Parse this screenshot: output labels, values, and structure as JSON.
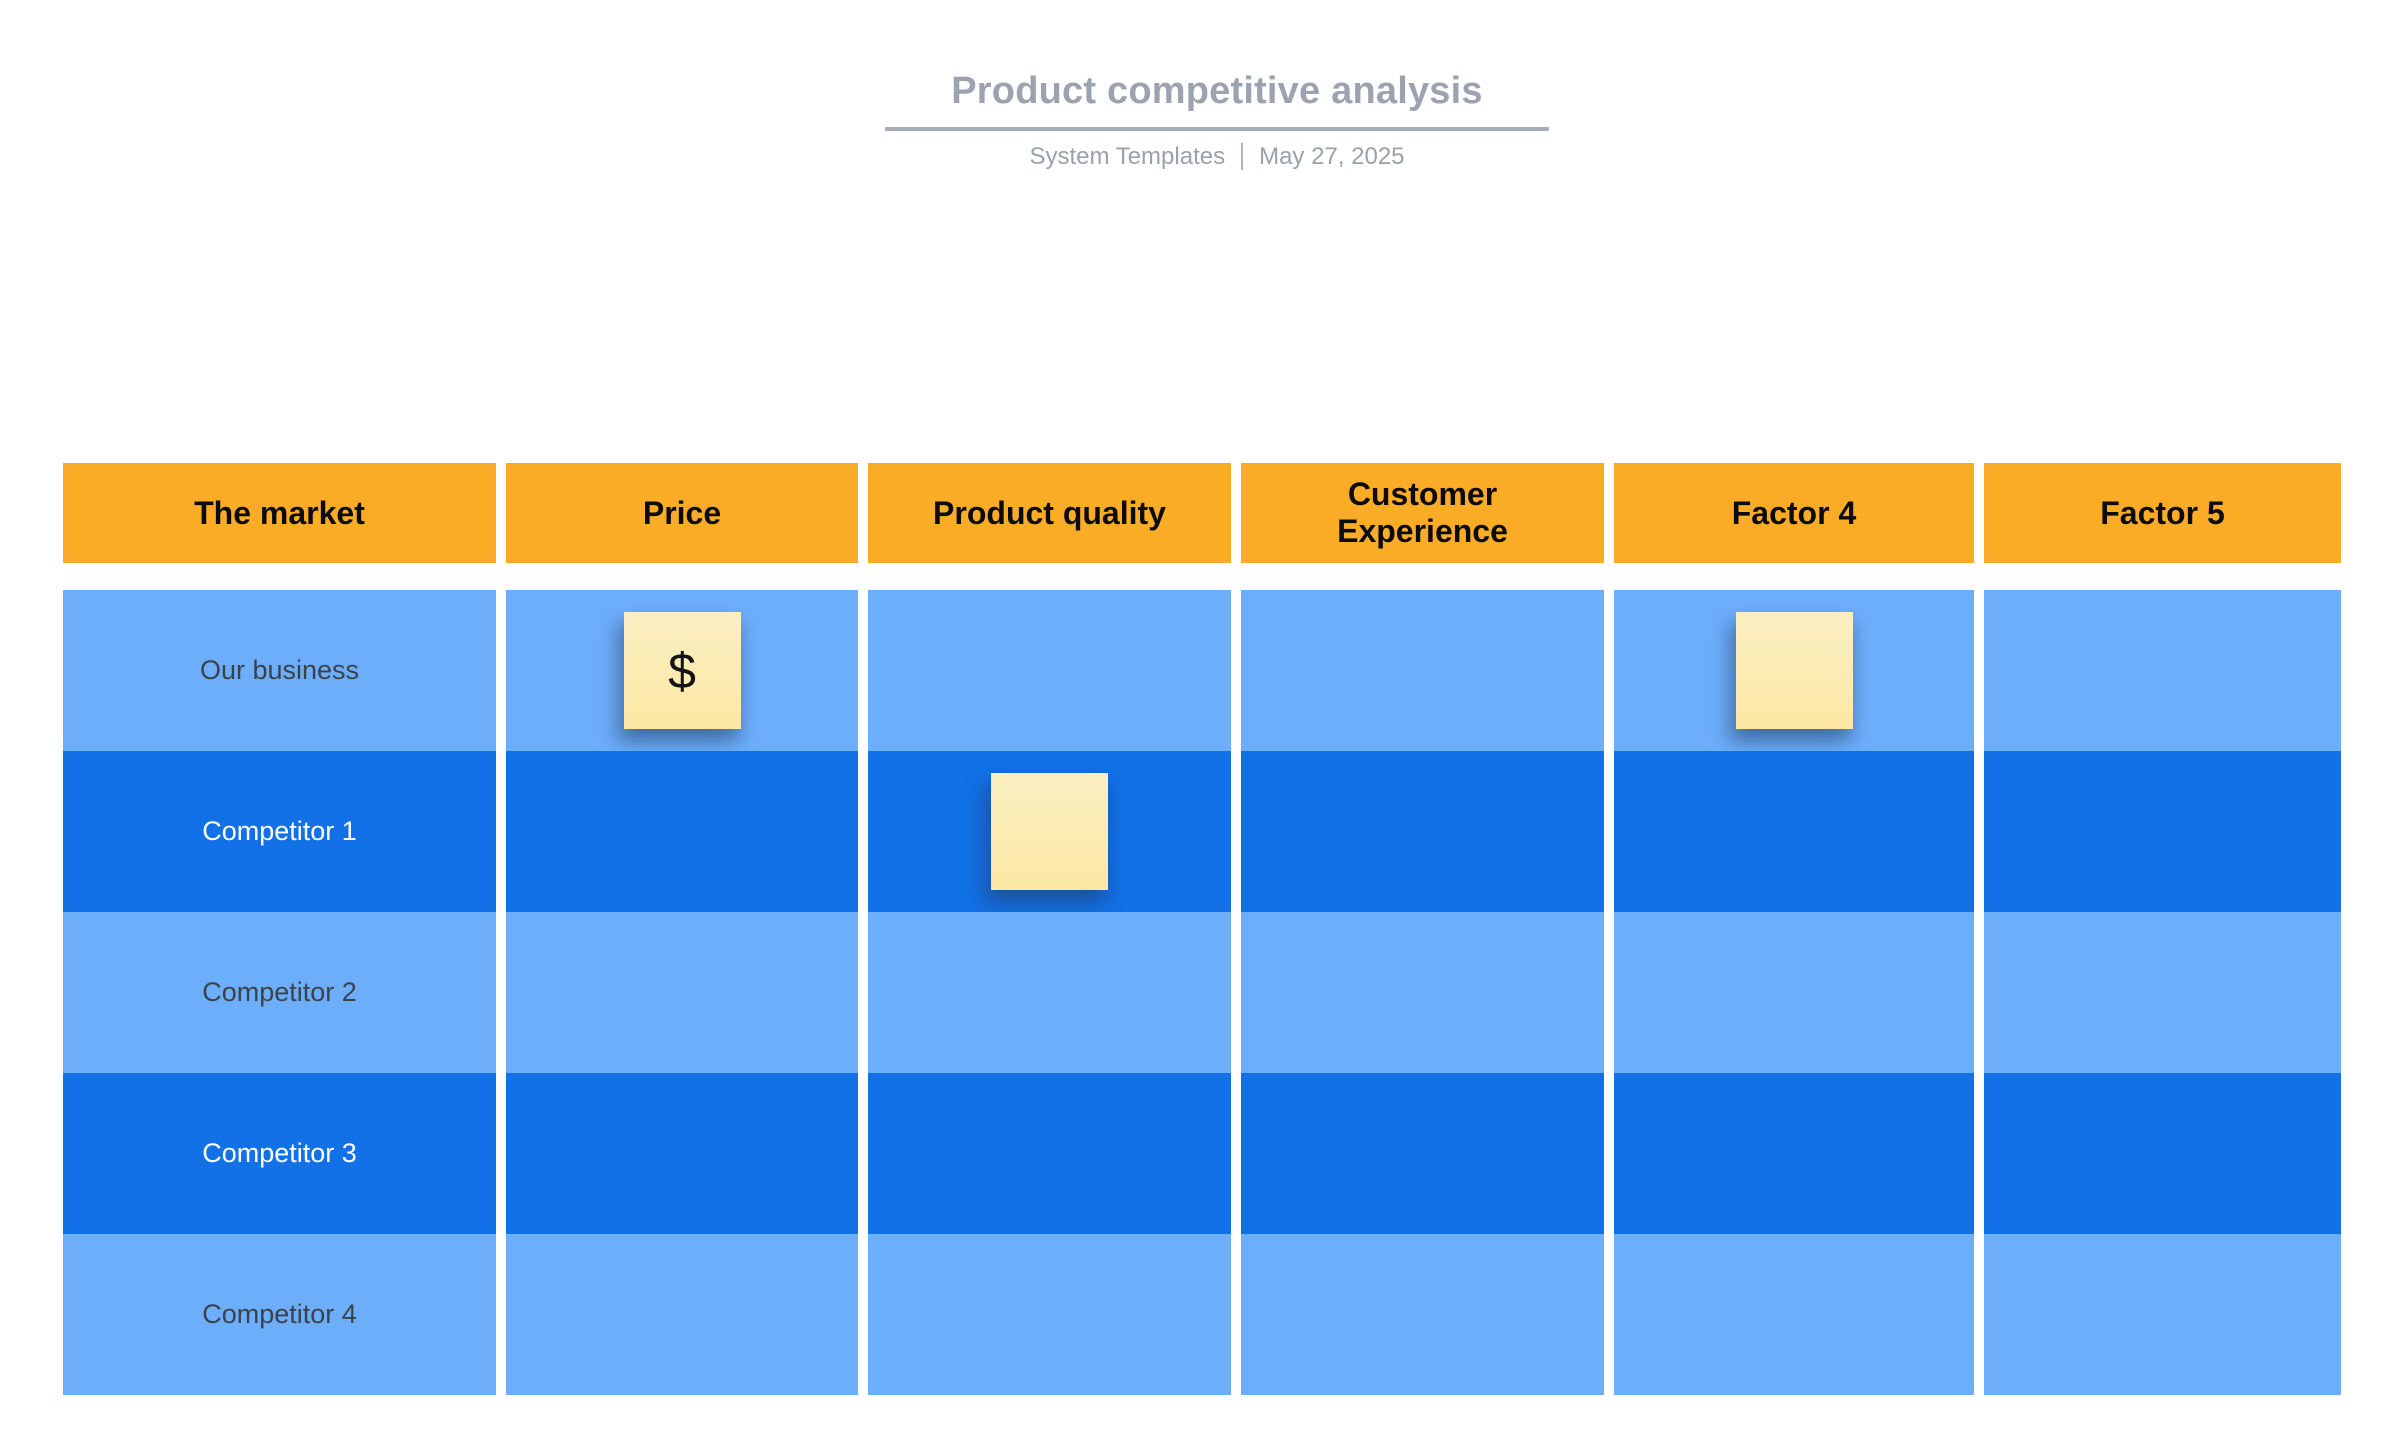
{
  "header": {
    "title": "Product competitive analysis",
    "byline": "System Templates",
    "date": "May 27, 2025"
  },
  "table": {
    "columns": [
      "The market",
      "Price",
      "Product quality",
      "Customer Experience",
      "Factor 4",
      "Factor 5"
    ],
    "rows": [
      {
        "label": "Our business",
        "shade": "light",
        "notes": [
          {
            "col": 1,
            "text": "$"
          },
          {
            "col": 4,
            "text": ""
          }
        ]
      },
      {
        "label": "Competitor 1",
        "shade": "dark",
        "notes": [
          {
            "col": 2,
            "text": ""
          }
        ]
      },
      {
        "label": "Competitor 2",
        "shade": "light",
        "notes": []
      },
      {
        "label": "Competitor 3",
        "shade": "dark",
        "notes": []
      },
      {
        "label": "Competitor 4",
        "shade": "light",
        "notes": []
      }
    ]
  },
  "colors": {
    "header_bg": "#FAAC27",
    "header_text": "#0B0B0C",
    "row_light": "#6DAEFB",
    "row_light_text": "#3C4249",
    "row_dark": "#1271E6",
    "row_dark_text": "#FFFFFF",
    "sticky_top": "#FBEFC3",
    "sticky_bottom": "#FCE8A3",
    "title_text": "#9CA3B0",
    "subtitle_text": "#99A1AC",
    "underline": "#A8AEB9",
    "separator": "#AEB4BE"
  }
}
